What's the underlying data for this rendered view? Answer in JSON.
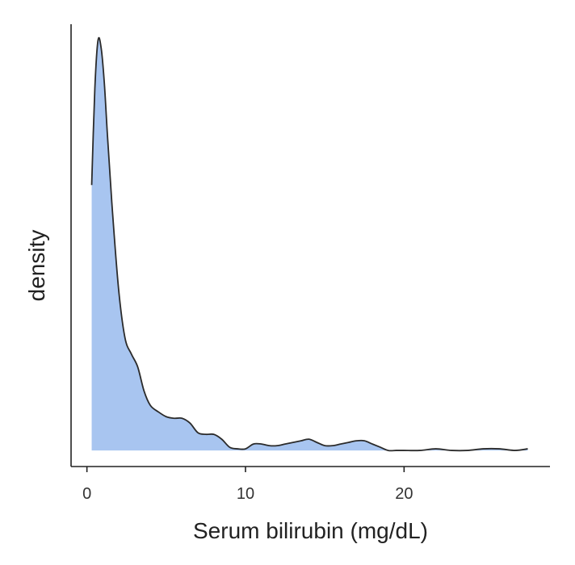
{
  "chart_data": {
    "type": "area",
    "title": "",
    "xlabel": "Serum bilirubin (mg/dL)",
    "ylabel": "density",
    "xlim": [
      -1,
      29.2
    ],
    "ylim": [
      -0.01,
      0.265
    ],
    "x_ticks": [
      0,
      10,
      20
    ],
    "y_ticks": [],
    "grid": false,
    "legend": "none",
    "fill_color": "#a8c5f0",
    "line_color": "#2b2b2b",
    "series": [
      {
        "x": [
          0.3,
          0.5,
          0.7,
          0.9,
          1.1,
          1.3,
          1.6,
          2.0,
          2.4,
          2.8,
          3.2,
          3.6,
          4.0,
          4.5,
          5.0,
          5.5,
          6.0,
          6.5,
          7.0,
          7.5,
          8.0,
          8.5,
          9.0,
          9.5,
          10.0,
          10.5,
          11.0,
          11.5,
          12.0,
          12.5,
          13.0,
          13.5,
          14.0,
          14.5,
          15.0,
          15.5,
          16.0,
          16.5,
          17.0,
          17.5,
          18.0,
          18.5,
          19.0,
          19.5,
          20.0,
          21.0,
          22.0,
          23.0,
          24.0,
          25.0,
          26.0,
          27.0,
          27.8
        ],
        "y": [
          0.165,
          0.225,
          0.255,
          0.25,
          0.228,
          0.195,
          0.15,
          0.1,
          0.07,
          0.06,
          0.052,
          0.037,
          0.028,
          0.024,
          0.021,
          0.02,
          0.02,
          0.017,
          0.011,
          0.01,
          0.01,
          0.007,
          0.002,
          0.001,
          0.001,
          0.004,
          0.004,
          0.003,
          0.003,
          0.004,
          0.005,
          0.006,
          0.007,
          0.005,
          0.003,
          0.003,
          0.004,
          0.005,
          0.006,
          0.006,
          0.004,
          0.002,
          0.0,
          0.0,
          0.0,
          0.0,
          0.001,
          0.0,
          0.0,
          0.001,
          0.001,
          0.0,
          0.001
        ]
      }
    ]
  }
}
